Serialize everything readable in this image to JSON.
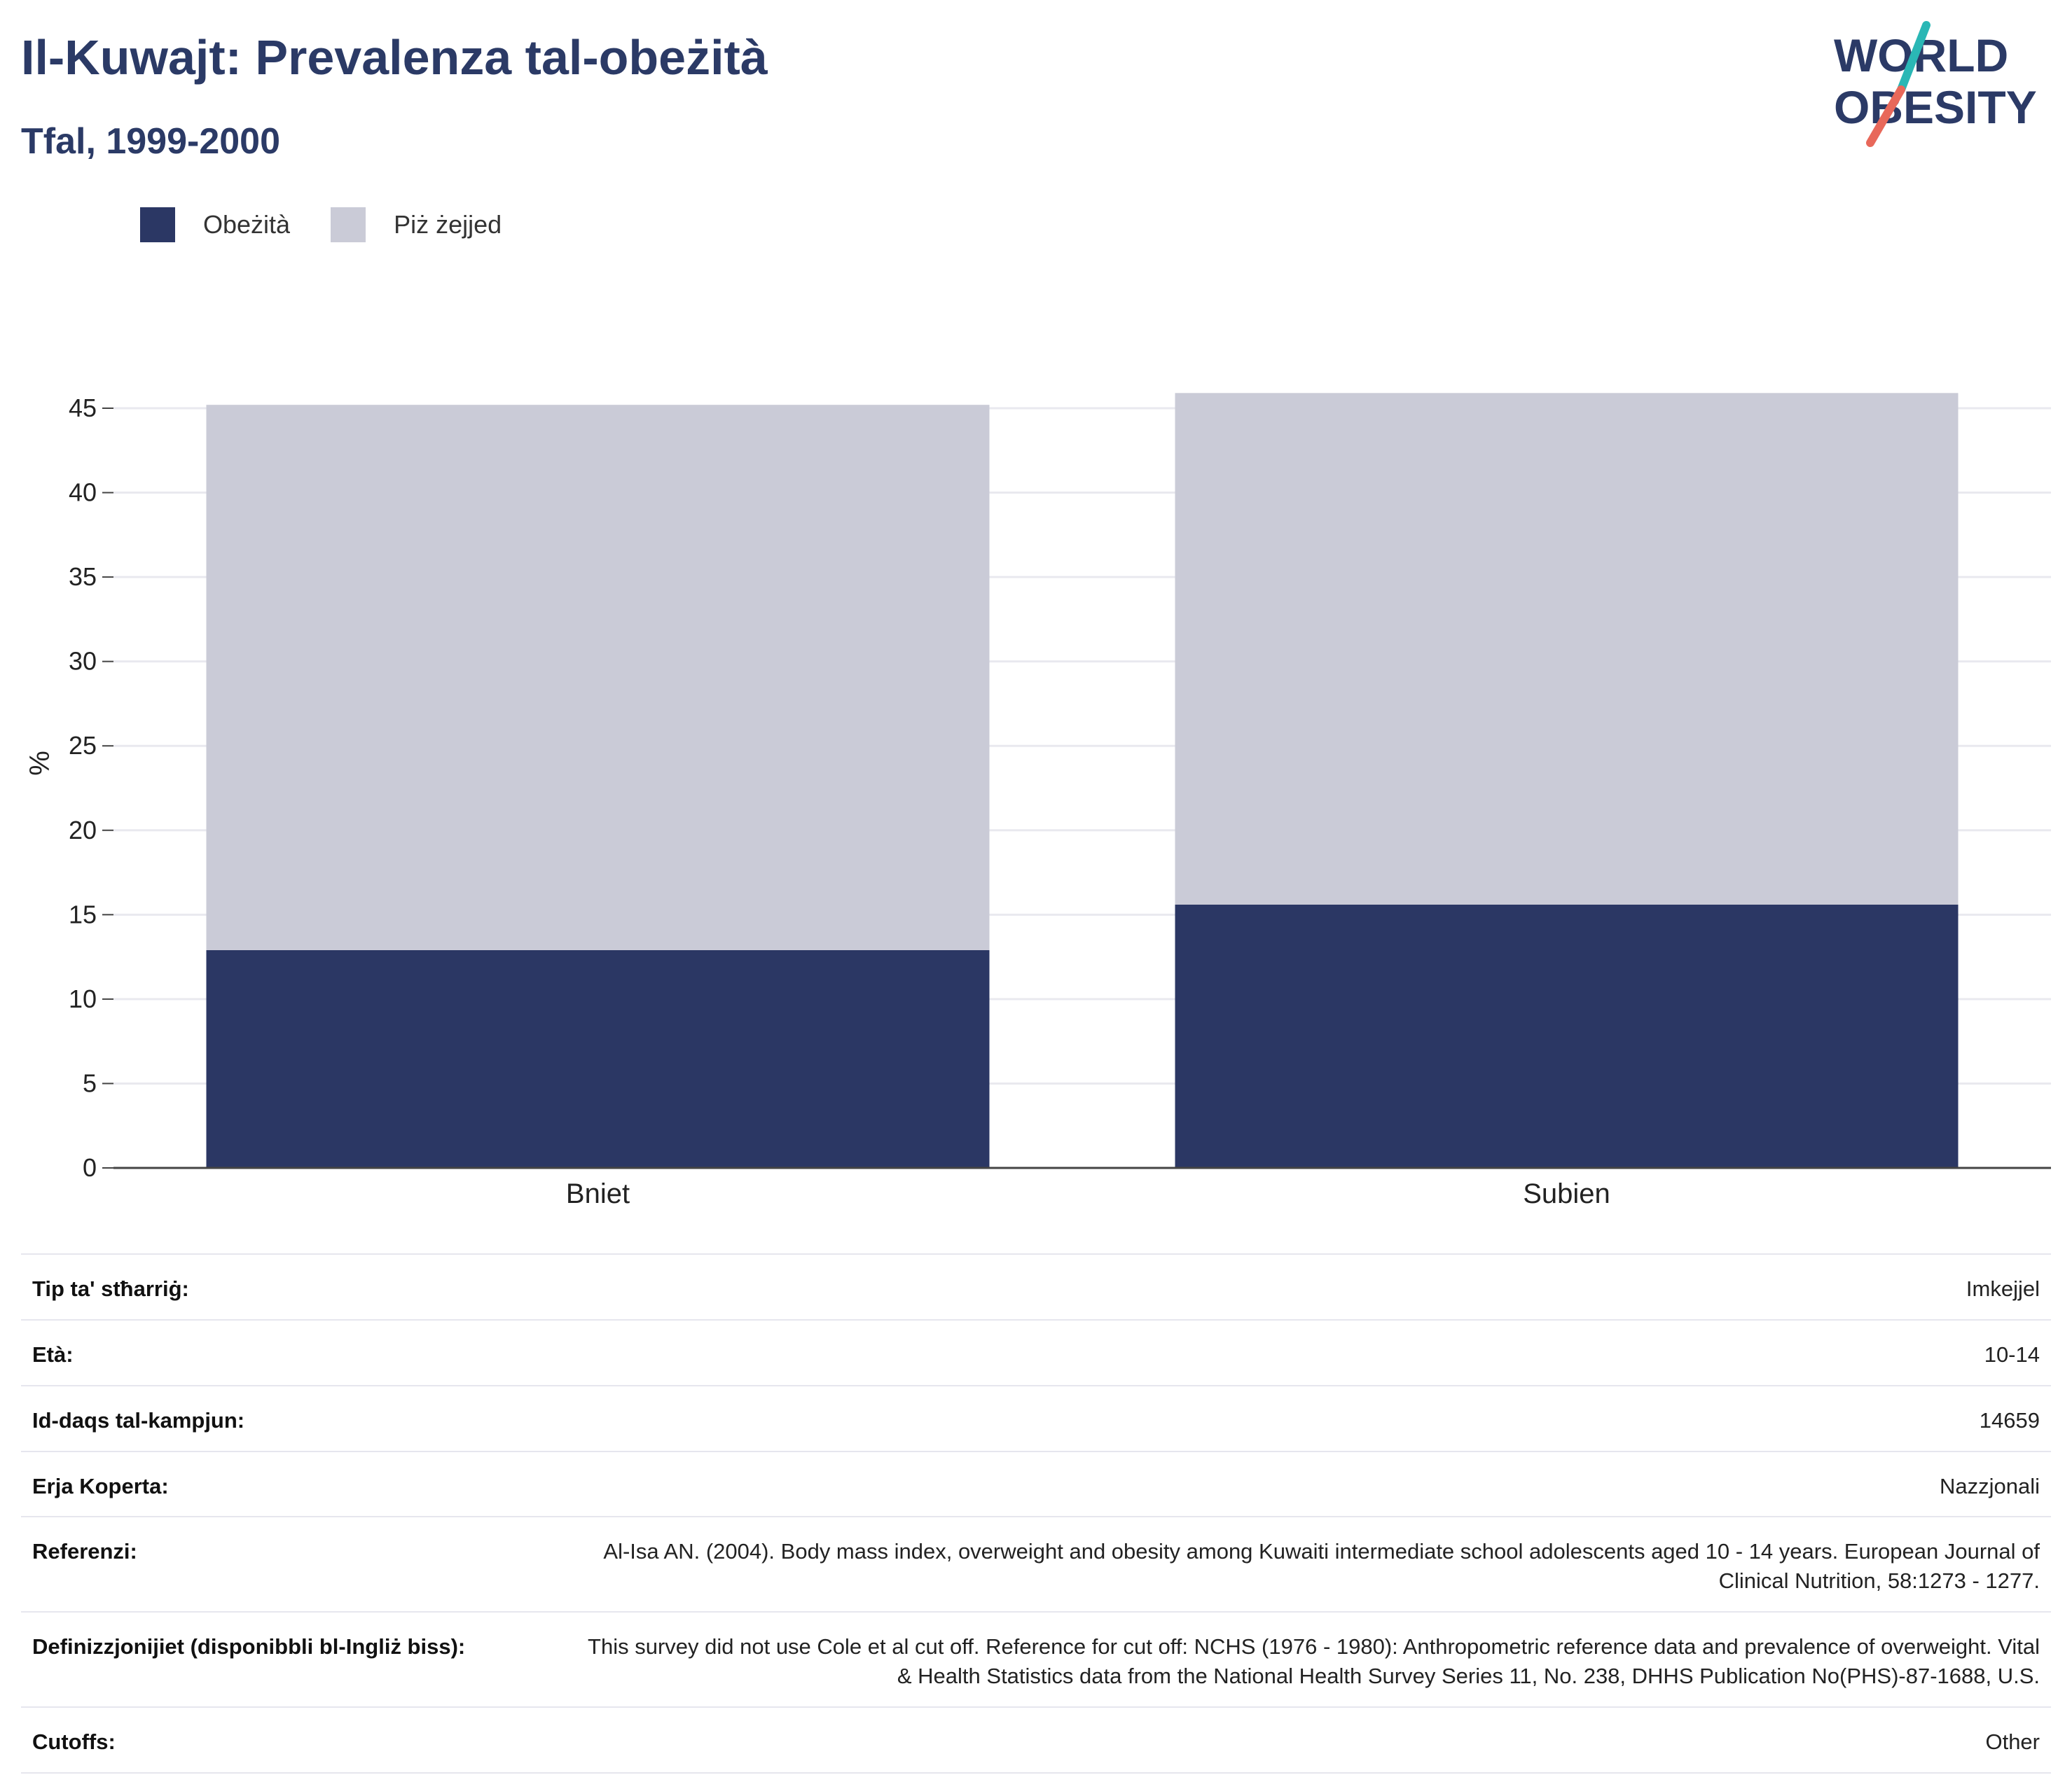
{
  "header": {
    "title": "Il-Kuwajt: Prevalenza tal-obeżità",
    "subtitle": "Tfal, 1999-2000"
  },
  "logo": {
    "line1": "WORLD",
    "line2": "OBESITY",
    "colors": {
      "text": "#2b3a66",
      "slash_top": "#2ab7b5",
      "slash_bottom": "#e8685a"
    }
  },
  "legend": [
    {
      "label": "Obeżità",
      "color": "#2b3764"
    },
    {
      "label": "Piż żejjed",
      "color": "#cacbd7"
    }
  ],
  "chart_data": {
    "type": "bar",
    "stacked": true,
    "categories": [
      "Bniet",
      "Subien"
    ],
    "series": [
      {
        "name": "Obeżità",
        "values": [
          12.9,
          15.6
        ],
        "color": "#2b3764"
      },
      {
        "name": "Piż żejjed",
        "values": [
          32.3,
          30.3
        ],
        "color": "#cacbd7"
      }
    ],
    "ylabel": "%",
    "ylim": [
      0,
      45
    ],
    "yticks": [
      0,
      5,
      10,
      15,
      20,
      25,
      30,
      35,
      40,
      45
    ],
    "grid": true,
    "legend_position": "top-left"
  },
  "details": [
    {
      "label": "Tip ta' stħarriġ:",
      "value": "Imkejjel"
    },
    {
      "label": "Età:",
      "value": "10-14"
    },
    {
      "label": "Id-daqs tal-kampjun:",
      "value": "14659"
    },
    {
      "label": "Erja Koperta:",
      "value": "Nazzjonali"
    },
    {
      "label": "Referenzi:",
      "value": "Al-Isa AN. (2004). Body mass index, overweight and obesity among Kuwaiti intermediate school adolescents aged 10 - 14 years. European Journal of Clinical Nutrition, 58:1273 - 1277."
    },
    {
      "label": "Definizzjonijiet (disponibbli bl-Ingliż biss):",
      "value": "This survey did not use Cole et al cut off. Reference for cut off: NCHS (1976 - 1980): Anthropometric reference data and prevalence of overweight. Vital & Health Statistics data from the National Health Survey Series 11, No. 238, DHHS Publication No(PHS)-87-1688, U.S."
    },
    {
      "label": "Cutoffs:",
      "value": "Other"
    }
  ]
}
